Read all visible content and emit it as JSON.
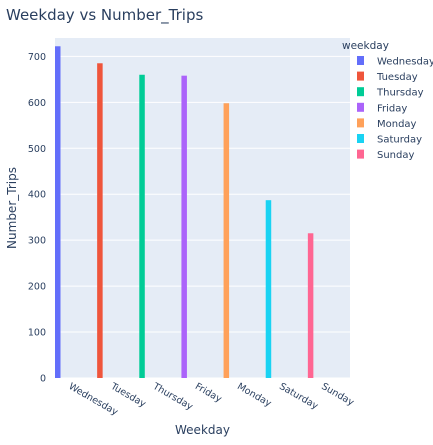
{
  "chart_data": {
    "type": "bar",
    "title": "Weekday vs Number_Trips",
    "xlabel": "Weekday",
    "ylabel": "Number_Trips",
    "ylim": [
      0,
      740
    ],
    "yticks": [
      0,
      100,
      200,
      300,
      400,
      500,
      600,
      700
    ],
    "grid": true,
    "legend_title": "weekday",
    "legend_position": "right",
    "categories": [
      "Wednesday",
      "Tuesday",
      "Thursday",
      "Friday",
      "Monday",
      "Saturday",
      "Sunday"
    ],
    "series": [
      {
        "name": "Wednesday",
        "values": [
          722,
          null,
          null,
          null,
          null,
          null,
          null
        ],
        "color": "#636efa"
      },
      {
        "name": "Tuesday",
        "values": [
          null,
          685,
          null,
          null,
          null,
          null,
          null
        ],
        "color": "#ef553b"
      },
      {
        "name": "Thursday",
        "values": [
          null,
          null,
          660,
          null,
          null,
          null,
          null
        ],
        "color": "#00cc96"
      },
      {
        "name": "Friday",
        "values": [
          null,
          null,
          null,
          658,
          null,
          null,
          null
        ],
        "color": "#ab63fa"
      },
      {
        "name": "Monday",
        "values": [
          null,
          null,
          null,
          null,
          598,
          null,
          null
        ],
        "color": "#ffa15a"
      },
      {
        "name": "Saturday",
        "values": [
          null,
          null,
          null,
          null,
          null,
          387,
          null
        ],
        "color": "#19d3f3"
      },
      {
        "name": "Sunday",
        "values": [
          null,
          null,
          null,
          null,
          null,
          null,
          315
        ],
        "color": "#ff6692"
      }
    ]
  },
  "colors": {
    "plot_background": "#e5ecf6",
    "grid": "#ffffff",
    "text": "#2a3f5f"
  }
}
